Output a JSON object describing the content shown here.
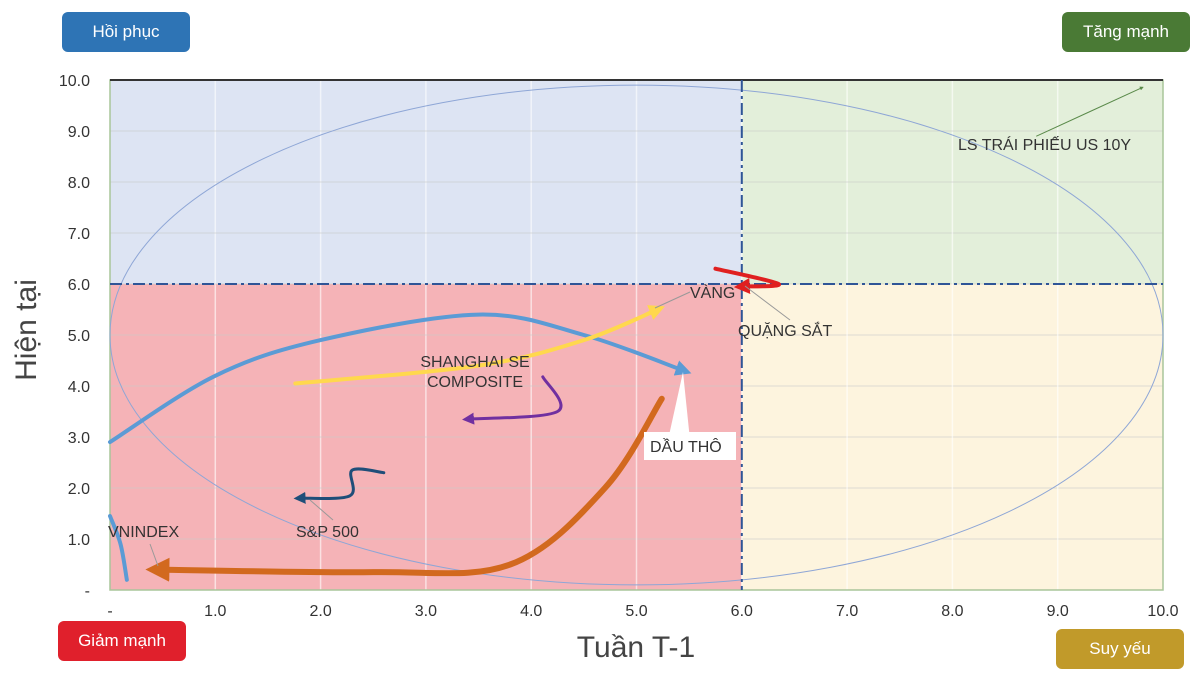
{
  "chart_data": {
    "type": "line",
    "title": "",
    "xlabel": "Tuần T-1",
    "ylabel": "Hiện tại",
    "xlim": [
      0,
      10
    ],
    "ylim": [
      0,
      10
    ],
    "xticks": [
      "-",
      "1.0",
      "2.0",
      "3.0",
      "4.0",
      "5.0",
      "6.0",
      "7.0",
      "8.0",
      "9.0",
      "10.0"
    ],
    "yticks": [
      "-",
      "1.0",
      "2.0",
      "3.0",
      "4.0",
      "5.0",
      "6.0",
      "7.0",
      "8.0",
      "9.0",
      "10.0"
    ],
    "grid": true,
    "threshold": {
      "x": 6,
      "y": 6
    },
    "quadrants": [
      {
        "label": "Hồi phục",
        "color": "#dde4f3",
        "button_color": "#2e74b5"
      },
      {
        "label": "Tăng mạnh",
        "color": "#e3efda",
        "button_color": "#4a7a35"
      },
      {
        "label": "Giảm mạnh",
        "color": "#f5b3b7",
        "button_color": "#e0202c"
      },
      {
        "label": "Suy yếu",
        "color": "#fdf4de",
        "button_color": "#c19a2a"
      }
    ],
    "ellipse": {
      "center": [
        5,
        5
      ],
      "radius": [
        5,
        4.9
      ]
    },
    "series": [
      {
        "name": "DẦU THÔ",
        "color": "#5b9bd5",
        "points": [
          [
            0,
            2.9
          ],
          [
            1,
            4.2
          ],
          [
            2,
            4.9
          ],
          [
            3.5,
            5.4
          ],
          [
            4.5,
            5.0
          ],
          [
            5.45,
            4.3
          ]
        ]
      },
      {
        "name": "VNINDEX",
        "color": "#d2691e",
        "points": [
          [
            5.24,
            3.75
          ],
          [
            4.7,
            2.0
          ],
          [
            3.8,
            0.5
          ],
          [
            2.5,
            0.35
          ],
          [
            0.45,
            0.4
          ]
        ]
      },
      {
        "name": "VÀNG",
        "color": "#ffd84d",
        "points": [
          [
            1.76,
            4.05
          ],
          [
            3.5,
            4.4
          ],
          [
            4.5,
            4.9
          ],
          [
            5.2,
            5.5
          ]
        ]
      },
      {
        "name": "SHANGHAI SE COMPOSITE",
        "color": "#7030a0",
        "points": [
          [
            4.11,
            4.18
          ],
          [
            4.25,
            3.5
          ],
          [
            3.4,
            3.35
          ]
        ]
      },
      {
        "name": "S&P 500",
        "color": "#1f4e79",
        "points": [
          [
            2.6,
            2.3
          ],
          [
            2.3,
            2.35
          ],
          [
            2.28,
            1.85
          ],
          [
            1.8,
            1.8
          ]
        ]
      },
      {
        "name": "QUẶNG SẮT",
        "color": "#e02020",
        "points": [
          [
            5.75,
            6.3
          ],
          [
            6.35,
            6.0
          ],
          [
            6.0,
            5.95
          ]
        ]
      },
      {
        "name": "LS TRÁI PHIẾU US 10Y",
        "color": "#5a8a4a",
        "points": [
          [
            8.8,
            8.9
          ],
          [
            9.8,
            9.85
          ]
        ]
      },
      {
        "name": "",
        "color": "#5b9bd5",
        "points": [
          [
            0,
            1.45
          ],
          [
            0.1,
            0.9
          ],
          [
            0.16,
            0.2
          ]
        ]
      }
    ]
  }
}
